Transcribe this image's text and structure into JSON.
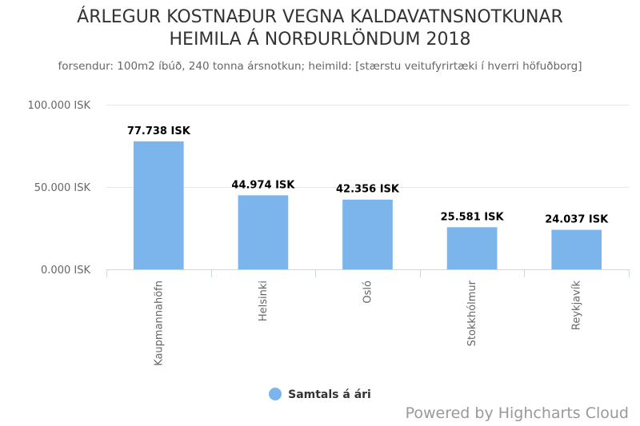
{
  "chart_data": {
    "type": "bar",
    "title_lines": [
      "ÁRLEGUR KOSTNAÐUR VEGNA KALDAVATNSNOTKUNAR",
      "HEIMILA Á NORÐURLÖNDUM 2018"
    ],
    "subtitle": "forsendur: 100m2 íbúð, 240 tonna ársnotkun; heimild: [stærstu veitufyrirtæki í hverri höfuðborg]",
    "categories": [
      "Kaupmannahöfn",
      "Helsinki",
      "Osló",
      "Stokkhólmur",
      "Reykjavík"
    ],
    "series": [
      {
        "name": "Samtals á ári",
        "values": [
          77738,
          44974,
          42356,
          25581,
          24037
        ],
        "data_labels": [
          "77.738 ISK",
          "44.974 ISK",
          "42.356 ISK",
          "25.581 ISK",
          "24.037 ISK"
        ],
        "color": "#7cb5ec"
      }
    ],
    "ylim": [
      0,
      100000
    ],
    "yticks": [
      0,
      50000,
      100000
    ],
    "ytick_labels": [
      "0.000 ISK",
      "50.000 ISK",
      "100.000 ISK"
    ],
    "grid": true,
    "legend_position": "bottom-center"
  },
  "credits": "Powered by Highcharts Cloud",
  "colors": {
    "bar": "#7cb5ec",
    "grid": "#e6e6e6",
    "axis": "#ccd6eb"
  }
}
